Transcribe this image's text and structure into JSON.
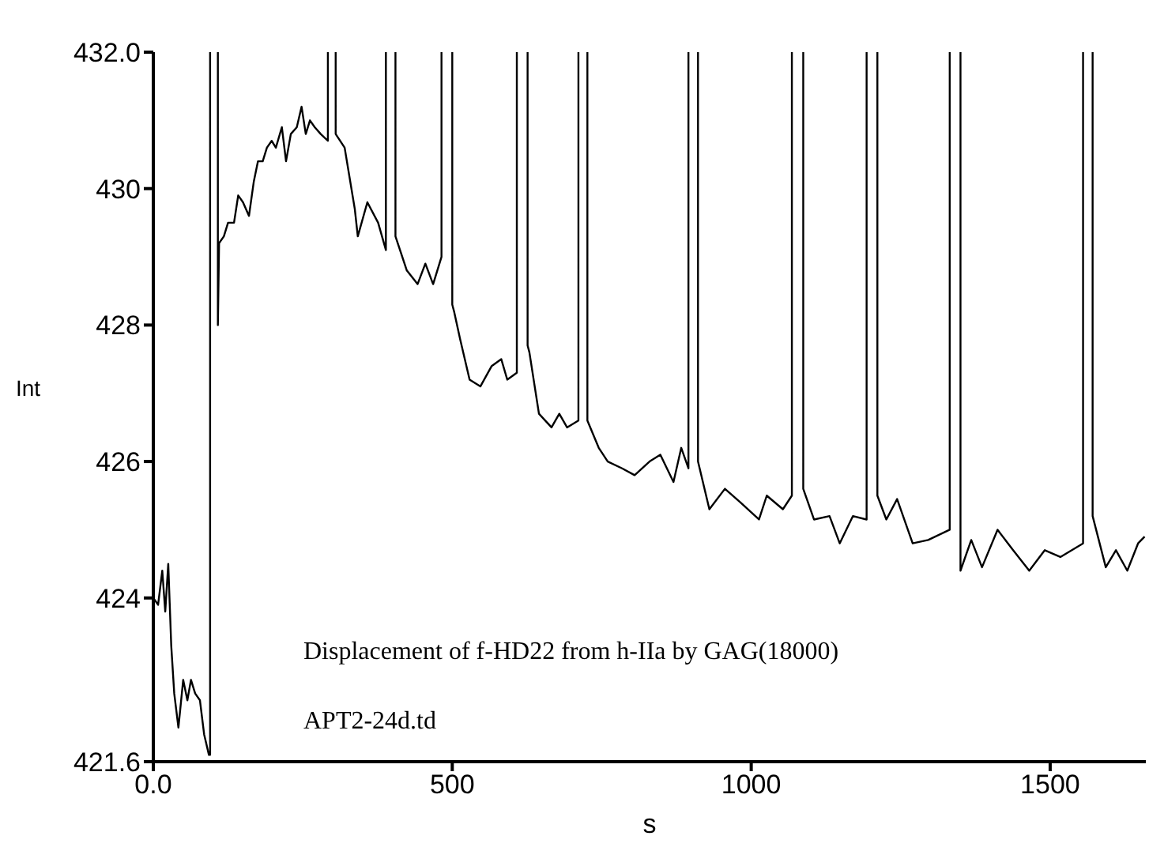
{
  "chart_data": {
    "type": "line",
    "xlabel": "s",
    "ylabel": "Int",
    "annotations": [
      "Displacement of f-HD22 from h-IIa by GAG(18000)",
      "APT2-24d.td"
    ],
    "xlim": [
      0,
      1660
    ],
    "xticks": [
      {
        "value": 0,
        "label": "0.0"
      },
      500,
      1000,
      1500
    ],
    "ylim": [
      421.6,
      432
    ],
    "yticks": [
      {
        "value": 421.6,
        "label": "421.6"
      },
      424,
      426,
      428,
      430,
      {
        "value": 432,
        "label": "432.0"
      }
    ],
    "marker": "none",
    "line_style": "solid",
    "series": [
      {
        "color": "#000000",
        "x": [
          0,
          8,
          15,
          20,
          25,
          30,
          35,
          42,
          50,
          57,
          63,
          70,
          78,
          85,
          93,
          95,
          95,
          101,
          108,
          108,
          110,
          118,
          125,
          135,
          142,
          150,
          160,
          168,
          175,
          183,
          190,
          198,
          205,
          215,
          222,
          230,
          240,
          248,
          255,
          262,
          270,
          280,
          292,
          292,
          298,
          305,
          305,
          320,
          337,
          342,
          358,
          376,
          389,
          389,
          397,
          405,
          405,
          424,
          442,
          455,
          468,
          482,
          482,
          491,
          500,
          500,
          503,
          513,
          529,
          547,
          566,
          582,
          592,
          608,
          608,
          617,
          626,
          626,
          629,
          645,
          666,
          679,
          692,
          711,
          711,
          718,
          726,
          726,
          745,
          760,
          784,
          805,
          830,
          848,
          870,
          883,
          895,
          895,
          903,
          911,
          911,
          930,
          956,
          982,
          1013,
          1026,
          1053,
          1068,
          1068,
          1077,
          1087,
          1087,
          1105,
          1131,
          1148,
          1170,
          1193,
          1193,
          1202,
          1211,
          1211,
          1226,
          1244,
          1270,
          1296,
          1332,
          1332,
          1341,
          1350,
          1350,
          1368,
          1386,
          1412,
          1438,
          1465,
          1491,
          1517,
          1555,
          1555,
          1563,
          1571,
          1571,
          1593,
          1610,
          1629,
          1647,
          1658
        ],
        "values": [
          424.0,
          423.9,
          424.4,
          423.8,
          424.5,
          423.3,
          422.6,
          422.1,
          422.8,
          422.5,
          422.8,
          422.6,
          422.5,
          422.0,
          421.7,
          421.7,
          432,
          null,
          432,
          428.0,
          429.2,
          429.3,
          429.5,
          429.5,
          429.9,
          429.8,
          429.6,
          430.1,
          430.4,
          430.4,
          430.6,
          430.7,
          430.6,
          430.9,
          430.4,
          430.8,
          430.9,
          431.2,
          430.8,
          431.0,
          430.9,
          430.8,
          430.7,
          432,
          null,
          432,
          430.8,
          430.6,
          429.7,
          429.3,
          429.8,
          429.5,
          429.1,
          432,
          null,
          432,
          429.3,
          428.8,
          428.6,
          428.9,
          428.6,
          429.0,
          432,
          null,
          432,
          428.3,
          428.2,
          427.8,
          427.2,
          427.1,
          427.4,
          427.5,
          427.2,
          427.3,
          432,
          null,
          432,
          427.7,
          427.6,
          426.7,
          426.5,
          426.7,
          426.5,
          426.6,
          432,
          null,
          432,
          426.6,
          426.2,
          426.0,
          425.9,
          425.8,
          426.0,
          426.1,
          425.7,
          426.2,
          425.9,
          432,
          null,
          432,
          426.0,
          425.3,
          425.6,
          425.4,
          425.15,
          425.5,
          425.3,
          425.5,
          432,
          null,
          432,
          425.6,
          425.15,
          425.2,
          424.8,
          425.2,
          425.15,
          432,
          null,
          432,
          425.5,
          425.15,
          425.45,
          424.8,
          424.85,
          425.0,
          432,
          null,
          432,
          424.4,
          424.85,
          424.45,
          425.0,
          424.7,
          424.4,
          424.7,
          424.6,
          424.8,
          432,
          null,
          432,
          425.2,
          424.45,
          424.7,
          424.4,
          424.8,
          424.9
        ]
      }
    ]
  }
}
